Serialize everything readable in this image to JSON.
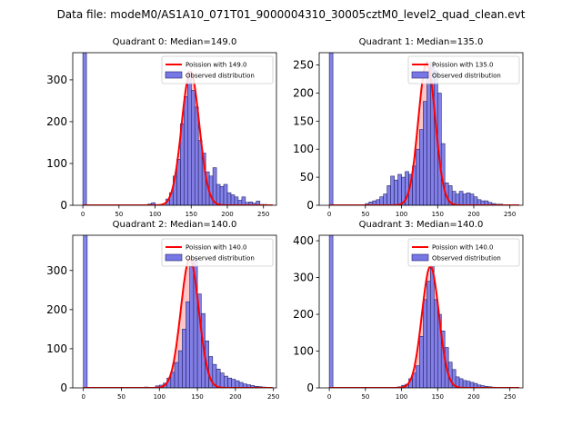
{
  "figure": {
    "suptitle": "Data file: modeM0/AS1A10_071T01_9000004310_30005cztM0_level2_quad_clean.evt",
    "colors": {
      "bar": "#7777e6",
      "bar_edge": "#22226a",
      "poisson": "#ff0000",
      "fill": "#ff9a9a"
    }
  },
  "chart_data": [
    {
      "type": "bar",
      "title": "Quadrant 0: Median=149.0",
      "legend": {
        "poisson": "Poission with 149.0",
        "observed": "Observed distribution",
        "placement": "top-right"
      },
      "xlim": [
        -14,
        268
      ],
      "ylim": [
        0,
        365
      ],
      "xticks": [
        0,
        50,
        100,
        150,
        200,
        250
      ],
      "yticks": [
        0,
        100,
        200,
        300
      ],
      "bin_width": 5,
      "mean": 149,
      "bars": [
        [
          0,
          365
        ],
        [
          90,
          3
        ],
        [
          95,
          6
        ],
        [
          115,
          15
        ],
        [
          120,
          30
        ],
        [
          125,
          70
        ],
        [
          130,
          110
        ],
        [
          135,
          195
        ],
        [
          140,
          260
        ],
        [
          145,
          320
        ],
        [
          150,
          275
        ],
        [
          155,
          235
        ],
        [
          160,
          155
        ],
        [
          165,
          125
        ],
        [
          170,
          80
        ],
        [
          175,
          70
        ],
        [
          180,
          90
        ],
        [
          185,
          50
        ],
        [
          190,
          45
        ],
        [
          195,
          50
        ],
        [
          200,
          30
        ],
        [
          205,
          25
        ],
        [
          210,
          20
        ],
        [
          215,
          12
        ],
        [
          220,
          20
        ],
        [
          225,
          7
        ],
        [
          230,
          8
        ],
        [
          235,
          5
        ],
        [
          240,
          10
        ],
        [
          245,
          2
        ],
        [
          250,
          2
        ],
        [
          255,
          1
        ]
      ]
    },
    {
      "type": "bar",
      "title": "Quadrant 1: Median=135.0",
      "legend": {
        "poisson": "Poission with 135.0",
        "observed": "Observed distribution",
        "placement": "top-right"
      },
      "xlim": [
        -14,
        268
      ],
      "ylim": [
        0,
        272
      ],
      "xticks": [
        0,
        50,
        100,
        150,
        200,
        250
      ],
      "yticks": [
        0,
        50,
        100,
        150,
        200,
        250
      ],
      "bin_width": 5,
      "mean": 135,
      "bars": [
        [
          0,
          272
        ],
        [
          50,
          3
        ],
        [
          55,
          6
        ],
        [
          60,
          8
        ],
        [
          65,
          10
        ],
        [
          70,
          15
        ],
        [
          75,
          20
        ],
        [
          80,
          35
        ],
        [
          85,
          52
        ],
        [
          90,
          45
        ],
        [
          95,
          55
        ],
        [
          100,
          50
        ],
        [
          105,
          60
        ],
        [
          110,
          55
        ],
        [
          115,
          70
        ],
        [
          120,
          100
        ],
        [
          125,
          135
        ],
        [
          130,
          185
        ],
        [
          135,
          230
        ],
        [
          140,
          255
        ],
        [
          145,
          240
        ],
        [
          150,
          200
        ],
        [
          155,
          110
        ],
        [
          160,
          40
        ],
        [
          165,
          35
        ],
        [
          170,
          25
        ],
        [
          175,
          20
        ],
        [
          180,
          25
        ],
        [
          185,
          20
        ],
        [
          190,
          22
        ],
        [
          195,
          20
        ],
        [
          200,
          15
        ],
        [
          205,
          10
        ],
        [
          210,
          8
        ],
        [
          215,
          8
        ],
        [
          220,
          5
        ],
        [
          225,
          3
        ],
        [
          230,
          2
        ],
        [
          235,
          2
        ],
        [
          240,
          1
        ],
        [
          245,
          1
        ]
      ]
    },
    {
      "type": "bar",
      "title": "Quadrant 2: Median=140.0",
      "legend": {
        "poisson": "Poission with 140.0",
        "observed": "Observed distribution",
        "placement": "top-right"
      },
      "xlim": [
        -14,
        254
      ],
      "ylim": [
        0,
        390
      ],
      "xticks": [
        0,
        50,
        100,
        150,
        200,
        250
      ],
      "yticks": [
        0,
        100,
        200,
        300
      ],
      "bin_width": 5,
      "mean": 140,
      "bars": [
        [
          0,
          390
        ],
        [
          80,
          2
        ],
        [
          95,
          5
        ],
        [
          100,
          7
        ],
        [
          105,
          12
        ],
        [
          110,
          25
        ],
        [
          115,
          40
        ],
        [
          120,
          65
        ],
        [
          125,
          95
        ],
        [
          130,
          150
        ],
        [
          135,
          220
        ],
        [
          140,
          310
        ],
        [
          145,
          330
        ],
        [
          150,
          240
        ],
        [
          155,
          190
        ],
        [
          160,
          120
        ],
        [
          165,
          80
        ],
        [
          170,
          60
        ],
        [
          175,
          48
        ],
        [
          180,
          38
        ],
        [
          185,
          30
        ],
        [
          190,
          25
        ],
        [
          195,
          22
        ],
        [
          200,
          18
        ],
        [
          205,
          14
        ],
        [
          210,
          10
        ],
        [
          215,
          8
        ],
        [
          220,
          6
        ],
        [
          225,
          4
        ],
        [
          230,
          3
        ],
        [
          235,
          2
        ],
        [
          240,
          1
        ]
      ]
    },
    {
      "type": "bar",
      "title": "Quadrant 3: Median=140.0",
      "legend": {
        "poisson": "Poission with 140.0",
        "observed": "Observed distribution",
        "placement": "top-right"
      },
      "xlim": [
        -14,
        268
      ],
      "ylim": [
        0,
        415
      ],
      "xticks": [
        0,
        50,
        100,
        150,
        200,
        250
      ],
      "yticks": [
        0,
        100,
        200,
        300,
        400
      ],
      "bin_width": 5,
      "mean": 140,
      "bars": [
        [
          0,
          415
        ],
        [
          95,
          3
        ],
        [
          100,
          7
        ],
        [
          105,
          10
        ],
        [
          110,
          25
        ],
        [
          115,
          40
        ],
        [
          120,
          60
        ],
        [
          125,
          140
        ],
        [
          130,
          240
        ],
        [
          135,
          290
        ],
        [
          140,
          330
        ],
        [
          145,
          240
        ],
        [
          150,
          200
        ],
        [
          155,
          155
        ],
        [
          160,
          110
        ],
        [
          165,
          70
        ],
        [
          170,
          50
        ],
        [
          175,
          30
        ],
        [
          180,
          25
        ],
        [
          185,
          20
        ],
        [
          190,
          18
        ],
        [
          195,
          15
        ],
        [
          200,
          12
        ],
        [
          205,
          8
        ],
        [
          210,
          6
        ],
        [
          215,
          4
        ],
        [
          220,
          3
        ],
        [
          225,
          2
        ],
        [
          230,
          1
        ]
      ]
    }
  ]
}
